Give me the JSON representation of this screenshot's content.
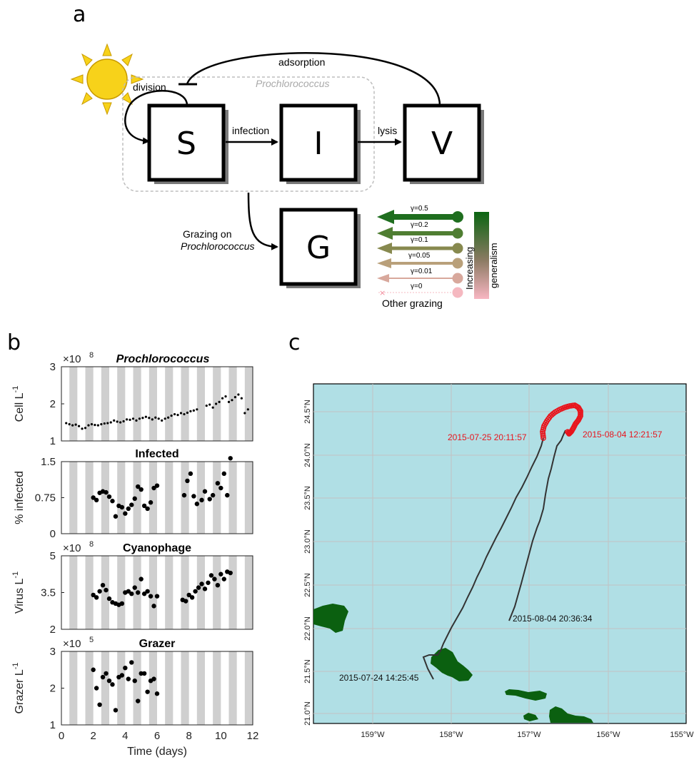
{
  "panel_labels": {
    "a": "a",
    "b": "b",
    "c": "c"
  },
  "diagram": {
    "compartments": {
      "s": "S",
      "i": "I",
      "v": "V",
      "g": "G"
    },
    "labels": {
      "adsorption": "adsorption",
      "division": "division",
      "host": "Prochlorococcus",
      "infection": "infection",
      "lysis": "lysis",
      "grazing_line1": "Grazing on",
      "grazing_line2": "Prochlorococcus",
      "other_grazing": "Other grazing",
      "colorbar_line1": "Increasing",
      "colorbar_line2": "generalism"
    },
    "gamma_legend": [
      {
        "label": "γ=0.5",
        "color": "#1f6e1f"
      },
      {
        "label": "γ=0.2",
        "color": "#4f7e32"
      },
      {
        "label": "γ=0.1",
        "color": "#87894f"
      },
      {
        "label": "γ=0.05",
        "color": "#b9a07a"
      },
      {
        "label": "γ=0.01",
        "color": "#d8a89c"
      },
      {
        "label": "γ=0",
        "color": "#f5b8c0"
      }
    ]
  },
  "timeseries": {
    "x_label": "Time (days)",
    "x_ticks": [
      "0",
      "2",
      "4",
      "6",
      "8",
      "10",
      "12"
    ],
    "panels": [
      {
        "title": "Prochlorococcus",
        "ylabel": "Cell L",
        "ylabel_sup": "-1",
        "multiplier": "×10",
        "multiplier_exp": "8",
        "yticks": [
          "1",
          "2",
          "3"
        ]
      },
      {
        "title": "Infected",
        "ylabel": "% infected",
        "ylabel_sup": "",
        "multiplier": "",
        "multiplier_exp": "",
        "yticks": [
          "0",
          "0.75",
          "1.5"
        ]
      },
      {
        "title": "Cyanophage",
        "ylabel": "Virus L",
        "ylabel_sup": "-1",
        "multiplier": "×10",
        "multiplier_exp": "8",
        "yticks": [
          "2",
          "3.5",
          "5"
        ]
      },
      {
        "title": "Grazer",
        "ylabel": "Grazer L",
        "ylabel_sup": "-1",
        "multiplier": "×10",
        "multiplier_exp": "5",
        "yticks": [
          "1",
          "2",
          "3"
        ]
      }
    ]
  },
  "map": {
    "lon_ticks": [
      "159°W",
      "158°W",
      "157°W",
      "156°W",
      "155°W"
    ],
    "lat_ticks": [
      "24.5°N",
      "24.0°N",
      "23.5°N",
      "23.0°N",
      "22.5°N",
      "22.0°N",
      "21.5°N",
      "21.0°N"
    ],
    "annotations": {
      "start_red": "2015-07-25 20:11:57",
      "end_red": "2015-08-04 12:21:57",
      "end_black": "2015-08-04 20:36:34",
      "start_black": "2015-07-24 14:25:45"
    },
    "colors": {
      "ocean": "#b0dfe5",
      "land": "#0b6010",
      "track": "#333333",
      "samples": "#e8141c"
    }
  },
  "chart_data": [
    {
      "type": "scatter",
      "title": "Prochlorococcus",
      "xlabel": "Time (days)",
      "ylabel": "Cell L-1 (×10^8)",
      "xlim": [
        0,
        12
      ],
      "ylim": [
        1,
        3
      ],
      "series": [
        {
          "x": [
            0.3,
            0.5,
            0.7,
            0.9,
            1.1,
            1.3,
            1.5,
            1.7,
            1.9,
            2.1,
            2.3,
            2.5,
            2.7,
            2.9,
            3.1,
            3.3,
            3.5,
            3.7,
            3.9,
            4.1,
            4.3,
            4.5,
            4.7,
            4.9,
            5.1,
            5.3,
            5.5,
            5.7,
            5.9,
            6.1,
            6.3,
            6.5,
            6.7,
            6.9,
            7.1,
            7.3,
            7.5,
            7.7,
            7.9,
            8.1,
            8.3,
            8.5,
            9.1,
            9.3,
            9.5,
            9.7,
            9.9,
            10.1,
            10.3,
            10.5,
            10.7,
            10.9,
            11.1,
            11.3,
            11.5,
            11.7
          ],
          "y": [
            1.48,
            1.45,
            1.42,
            1.44,
            1.4,
            1.33,
            1.35,
            1.42,
            1.45,
            1.43,
            1.42,
            1.45,
            1.47,
            1.48,
            1.5,
            1.55,
            1.52,
            1.5,
            1.53,
            1.58,
            1.57,
            1.6,
            1.55,
            1.6,
            1.62,
            1.65,
            1.62,
            1.58,
            1.63,
            1.6,
            1.55,
            1.6,
            1.63,
            1.68,
            1.72,
            1.7,
            1.75,
            1.72,
            1.76,
            1.8,
            1.82,
            1.85,
            1.95,
            1.98,
            1.9,
            2.0,
            2.05,
            2.15,
            2.2,
            2.05,
            2.1,
            2.18,
            2.25,
            2.15,
            1.75,
            1.85
          ]
        }
      ]
    },
    {
      "type": "scatter",
      "title": "Infected",
      "xlabel": "Time (days)",
      "ylabel": "% infected",
      "xlim": [
        0,
        12
      ],
      "ylim": [
        0,
        1.5
      ],
      "series": [
        {
          "x": [
            2.0,
            2.2,
            2.4,
            2.6,
            2.8,
            3.0,
            3.2,
            3.4,
            3.6,
            3.8,
            4.0,
            4.2,
            4.4,
            4.6,
            4.8,
            5.0,
            5.2,
            5.4,
            5.6,
            5.8,
            6.0,
            7.7,
            7.9,
            8.1,
            8.3,
            8.5,
            8.8,
            9.0,
            9.3,
            9.5,
            9.8,
            10.0,
            10.2,
            10.4,
            10.6
          ],
          "y": [
            0.75,
            0.7,
            0.85,
            0.88,
            0.86,
            0.77,
            0.68,
            0.36,
            0.58,
            0.55,
            0.42,
            0.52,
            0.6,
            0.73,
            0.98,
            0.92,
            0.58,
            0.52,
            0.65,
            0.95,
            1.0,
            0.8,
            1.1,
            1.25,
            0.78,
            0.62,
            0.7,
            0.88,
            0.72,
            0.8,
            1.05,
            0.95,
            1.25,
            0.8,
            1.57
          ]
        }
      ]
    },
    {
      "type": "scatter",
      "title": "Cyanophage",
      "xlabel": "Time (days)",
      "ylabel": "Virus L-1 (×10^8)",
      "xlim": [
        0,
        12
      ],
      "ylim": [
        2,
        5
      ],
      "series": [
        {
          "x": [
            2.0,
            2.2,
            2.4,
            2.6,
            2.8,
            3.0,
            3.2,
            3.4,
            3.6,
            3.8,
            4.0,
            4.2,
            4.4,
            4.6,
            4.8,
            5.0,
            5.2,
            5.4,
            5.6,
            5.8,
            6.0,
            7.6,
            7.8,
            8.0,
            8.2,
            8.4,
            8.6,
            8.8,
            9.0,
            9.2,
            9.4,
            9.6,
            9.8,
            10.0,
            10.2,
            10.4,
            10.6
          ],
          "y": [
            3.4,
            3.3,
            3.55,
            3.8,
            3.6,
            3.25,
            3.1,
            3.05,
            3.0,
            3.05,
            3.5,
            3.55,
            3.45,
            3.7,
            3.5,
            4.05,
            3.45,
            3.55,
            3.35,
            2.95,
            3.35,
            3.2,
            3.15,
            3.4,
            3.3,
            3.55,
            3.7,
            3.85,
            3.65,
            3.9,
            4.2,
            4.05,
            3.8,
            4.25,
            4.05,
            4.35,
            4.3
          ]
        }
      ]
    },
    {
      "type": "scatter",
      "title": "Grazer",
      "xlabel": "Time (days)",
      "ylabel": "Grazer L-1 (×10^5)",
      "xlim": [
        0,
        12
      ],
      "ylim": [
        1,
        3
      ],
      "series": [
        {
          "x": [
            2.0,
            2.2,
            2.4,
            2.6,
            2.8,
            3.0,
            3.2,
            3.4,
            3.6,
            3.8,
            4.0,
            4.2,
            4.4,
            4.6,
            4.8,
            5.0,
            5.2,
            5.4,
            5.6,
            5.8,
            6.0
          ],
          "y": [
            2.5,
            2.0,
            1.55,
            2.3,
            2.4,
            2.2,
            2.1,
            1.4,
            2.3,
            2.35,
            2.55,
            2.25,
            2.7,
            2.2,
            1.65,
            2.4,
            2.4,
            1.9,
            2.2,
            2.25,
            1.85
          ]
        }
      ]
    }
  ]
}
